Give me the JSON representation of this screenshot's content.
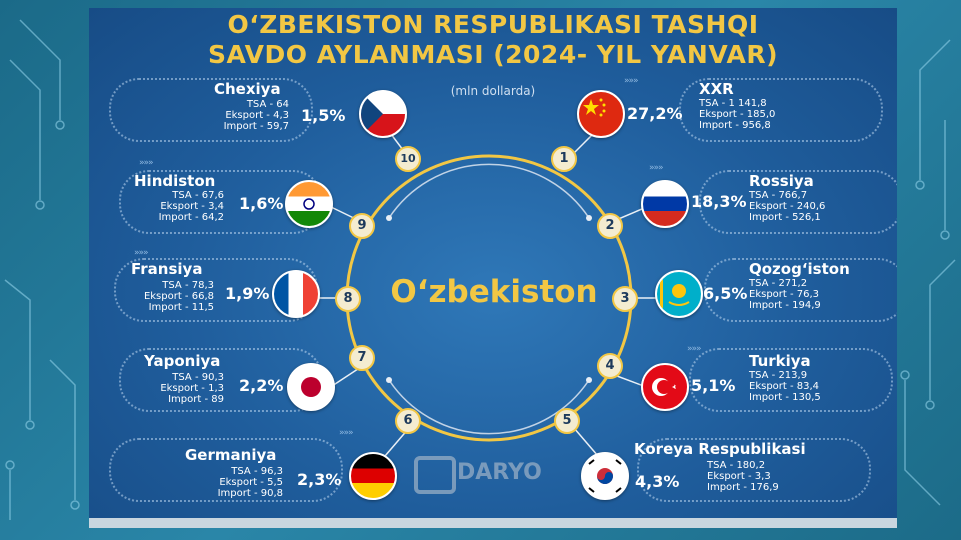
{
  "title_line1": "O‘ZBEKISTON RESPUBLIKASI TASHQI",
  "title_line2": "SAVDO AYLANMASI (2024- YIL YANVAR)",
  "unit": "(mln dollarda)",
  "center": "O‘zbekiston",
  "brand": "DARYO",
  "colors": {
    "accent": "#f2c744",
    "panel": "#1f5d9c",
    "text": "#ffffff"
  },
  "partners": [
    {
      "rank": "1",
      "name": "XXR",
      "share": "27,2%",
      "tsa": "TSA - 1 141,8",
      "eksport": "Eksport - 185,0",
      "import": "Import - 956,8",
      "flag": "china-flag"
    },
    {
      "rank": "2",
      "name": "Rossiya",
      "share": "18,3%",
      "tsa": "TSA - 766,7",
      "eksport": "Eksport - 240,6",
      "import": "Import - 526,1",
      "flag": "russia-flag"
    },
    {
      "rank": "3",
      "name": "Qozog‘iston",
      "share": "6,5%",
      "tsa": "TSA - 271,2",
      "eksport": "Eksport - 76,3",
      "import": "Import - 194,9",
      "flag": "kazakhstan-flag"
    },
    {
      "rank": "4",
      "name": "Turkiya",
      "share": "5,1%",
      "tsa": "TSA - 213,9",
      "eksport": "Eksport - 83,4",
      "import": "Import - 130,5",
      "flag": "turkey-flag"
    },
    {
      "rank": "5",
      "name": "Koreya Respublikasi",
      "share": "4,3%",
      "tsa": "TSA - 180,2",
      "eksport": "Eksport - 3,3",
      "import": "Import - 176,9",
      "flag": "korea-flag"
    },
    {
      "rank": "6",
      "name": "Germaniya",
      "share": "2,3%",
      "tsa": "TSA - 96,3",
      "eksport": "Eksport - 5,5",
      "import": "Import - 90,8",
      "flag": "germany-flag"
    },
    {
      "rank": "7",
      "name": "Yaponiya",
      "share": "2,2%",
      "tsa": "TSA - 90,3",
      "eksport": "Eksport - 1,3",
      "import": "Import - 89",
      "flag": "japan-flag"
    },
    {
      "rank": "8",
      "name": "Fransiya",
      "share": "1,9%",
      "tsa": "TSA - 78,3",
      "eksport": "Eksport - 66,8",
      "import": "Import - 11,5",
      "flag": "france-flag"
    },
    {
      "rank": "9",
      "name": "Hindiston",
      "share": "1,6%",
      "tsa": "TSA - 67,6",
      "eksport": "Eksport - 3,4",
      "import": "Import - 64,2",
      "flag": "india-flag"
    },
    {
      "rank": "10",
      "name": "Chexiya",
      "share": "1,5%",
      "tsa": "TSA - 64",
      "eksport": "Eksport - 4,3",
      "import": "Import - 59,7",
      "flag": "czech-flag"
    }
  ]
}
